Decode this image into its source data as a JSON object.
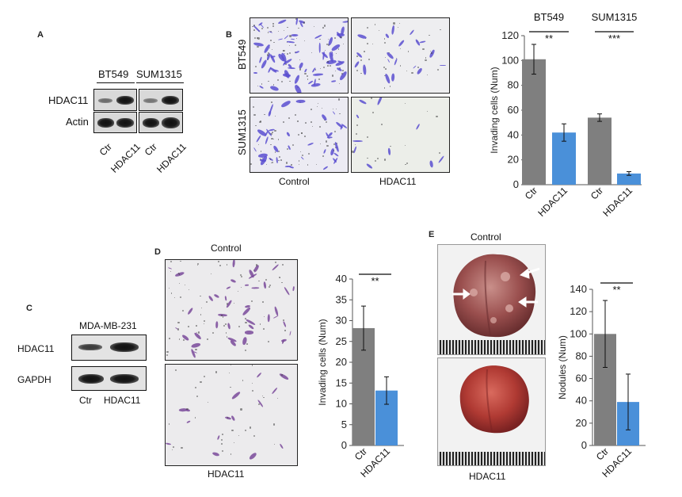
{
  "panels": {
    "a": "A",
    "b": "B",
    "c": "C",
    "d": "D",
    "e": "E"
  },
  "panel_a": {
    "cell_lines": [
      "BT549",
      "SUM1315"
    ],
    "rows": [
      "HDAC11",
      "Actin"
    ],
    "lanes": [
      "Ctr",
      "HDAC11",
      "Ctr",
      "HDAC11"
    ]
  },
  "panel_b": {
    "row_labels": [
      "BT549",
      "SUM1315"
    ],
    "col_labels": [
      "Control",
      "HDAC11"
    ],
    "stain_color": "#5a4fd0"
  },
  "panel_c": {
    "cell_line": "MDA-MB-231",
    "rows": [
      "HDAC11",
      "GAPDH"
    ],
    "lanes": [
      "Ctr",
      "HDAC11"
    ]
  },
  "panel_d": {
    "top_label": "Control",
    "bottom_label": "HDAC11",
    "stain_color": "#7a4a9a"
  },
  "panel_e": {
    "top_label": "Control",
    "bottom_label": "HDAC11"
  },
  "chart_data": [
    {
      "id": "chart-b",
      "type": "bar",
      "ylabel": "Invading cells (Num)",
      "ylim": [
        0,
        120
      ],
      "yticks": [
        0,
        20,
        40,
        60,
        80,
        100,
        120
      ],
      "groups": [
        "BT549",
        "SUM1315"
      ],
      "categories": [
        "Ctr",
        "HDAC11",
        "Ctr",
        "HDAC11"
      ],
      "values": [
        101,
        42,
        54,
        9
      ],
      "errors": [
        12,
        7,
        3,
        1.5
      ],
      "significance": [
        "**",
        "***"
      ],
      "colors": [
        "#7f7f7f",
        "#4a90d9",
        "#7f7f7f",
        "#4a90d9"
      ]
    },
    {
      "id": "chart-d",
      "type": "bar",
      "ylabel": "Invading cells (Num)",
      "ylim": [
        0,
        40
      ],
      "yticks": [
        0,
        5,
        10,
        15,
        20,
        25,
        30,
        35,
        40
      ],
      "categories": [
        "Ctr",
        "HDAC11"
      ],
      "values": [
        28.2,
        13.2
      ],
      "errors": [
        5.3,
        3.3
      ],
      "significance": [
        "**"
      ],
      "colors": [
        "#7f7f7f",
        "#4a90d9"
      ]
    },
    {
      "id": "chart-e",
      "type": "bar",
      "ylabel": "Nodules (Num)",
      "ylim": [
        0,
        140
      ],
      "yticks": [
        0,
        20,
        40,
        60,
        80,
        100,
        120,
        140
      ],
      "categories": [
        "Ctr",
        "HDAC11"
      ],
      "values": [
        100,
        39
      ],
      "errors": [
        30,
        25
      ],
      "significance": [
        "**"
      ],
      "colors": [
        "#7f7f7f",
        "#4a90d9"
      ]
    }
  ]
}
